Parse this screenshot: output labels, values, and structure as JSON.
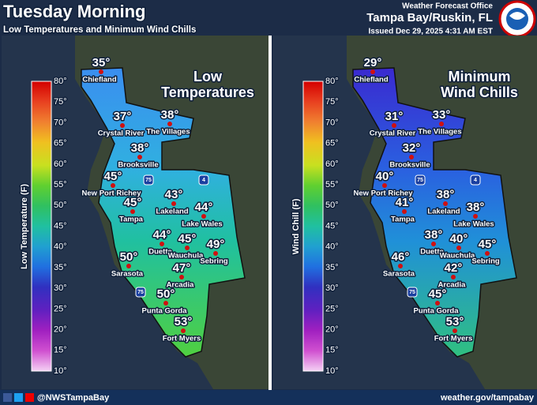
{
  "header": {
    "title": "Tuesday Morning",
    "subtitle": "Low Temperatures and Minimum Wind Chills",
    "office": "Weather Forecast Office",
    "location": "Tampa Bay/Ruskin, FL",
    "issued": "Issued Dec 29, 2025 4:31 AM EST"
  },
  "panels": [
    {
      "title_lines": [
        "Low",
        "Temperatures"
      ],
      "scale_label": "Low Temperature (F)",
      "scale_ticks": [
        "80°",
        "75°",
        "70°",
        "65°",
        "60°",
        "55°",
        "50°",
        "45°",
        "40°",
        "35°",
        "30°",
        "25°",
        "20°",
        "15°",
        "10°"
      ],
      "cities": [
        {
          "name": "Chiefland",
          "value": "35°"
        },
        {
          "name": "Crystal River",
          "value": "37°"
        },
        {
          "name": "The Villages",
          "value": "38°"
        },
        {
          "name": "Brooksville",
          "value": "38°"
        },
        {
          "name": "New Port Richey",
          "value": "45°"
        },
        {
          "name": "Tampa",
          "value": "45°"
        },
        {
          "name": "Lakeland",
          "value": "43°"
        },
        {
          "name": "Lake Wales",
          "value": "44°"
        },
        {
          "name": "Duette",
          "value": "44°"
        },
        {
          "name": "Wauchula",
          "value": "45°"
        },
        {
          "name": "Sebring",
          "value": "49°"
        },
        {
          "name": "Sarasota",
          "value": "50°"
        },
        {
          "name": "Arcadia",
          "value": "47°"
        },
        {
          "name": "Punta Gorda",
          "value": "50°"
        },
        {
          "name": "Fort Myers",
          "value": "53°"
        }
      ],
      "highways": [
        "75",
        "4",
        "75"
      ]
    },
    {
      "title_lines": [
        "Minimum",
        "Wind Chills"
      ],
      "scale_label": "Wind Chill (F)",
      "scale_ticks": [
        "80°",
        "75°",
        "70°",
        "65°",
        "60°",
        "55°",
        "50°",
        "45°",
        "40°",
        "35°",
        "30°",
        "25°",
        "20°",
        "15°",
        "10°"
      ],
      "cities": [
        {
          "name": "Chiefland",
          "value": "29°"
        },
        {
          "name": "Crystal River",
          "value": "31°"
        },
        {
          "name": "The Villages",
          "value": "33°"
        },
        {
          "name": "Brooksville",
          "value": "32°"
        },
        {
          "name": "New Port Richey",
          "value": "40°"
        },
        {
          "name": "Tampa",
          "value": "41°"
        },
        {
          "name": "Lakeland",
          "value": "38°"
        },
        {
          "name": "Lake Wales",
          "value": "38°"
        },
        {
          "name": "Duette",
          "value": "38°"
        },
        {
          "name": "Wauchula",
          "value": "40°"
        },
        {
          "name": "Sebring",
          "value": "45°"
        },
        {
          "name": "Sarasota",
          "value": "46°"
        },
        {
          "name": "Arcadia",
          "value": "42°"
        },
        {
          "name": "Punta Gorda",
          "value": "45°"
        },
        {
          "name": "Fort Myers",
          "value": "53°"
        }
      ],
      "highways": [
        "75",
        "4",
        "75"
      ]
    }
  ],
  "footer": {
    "social": "@NWSTampaBay",
    "website": "weather.gov/tampabay"
  }
}
